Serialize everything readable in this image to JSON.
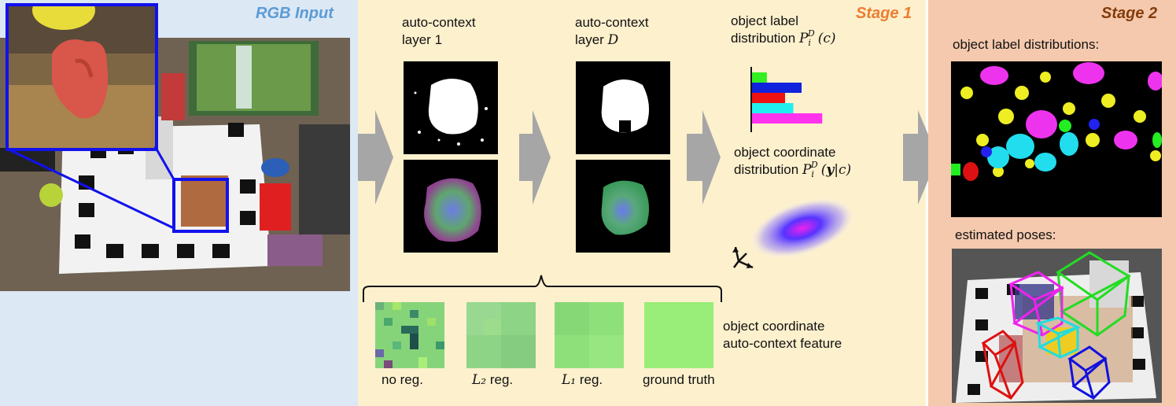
{
  "panels": {
    "rgb_input": {
      "title": "RGB Input",
      "title_color": "#5b9bd5",
      "bg": "#dce8f4"
    },
    "stage1": {
      "title": "Stage 1",
      "title_color": "#ed7d31",
      "bg": "#fdf0cd"
    },
    "stage2": {
      "title": "Stage 2",
      "title_color": "#843c0c",
      "bg": "#f4c9ad"
    }
  },
  "stage1": {
    "layer1_line1": "auto-context",
    "layer1_line2": "layer 1",
    "layerD_line1": "auto-context",
    "layerD_line2_prefix": "layer ",
    "layerD_line2_math": "D",
    "label_dist_line1": "object label",
    "label_dist_line2_prefix": "distribution ",
    "label_dist_line2_math": "P",
    "coord_dist_line1": "object coordinate",
    "coord_dist_line2_prefix": "distribution ",
    "coord_dist_line2_math": "P",
    "feature_line1": "object coordinate",
    "feature_line2": "auto-context feature",
    "patches": [
      {
        "label": "no reg.",
        "math": ""
      },
      {
        "label": " reg.",
        "math": "L₂"
      },
      {
        "label": " reg.",
        "math": "L₁"
      },
      {
        "label": "ground truth",
        "math": ""
      }
    ],
    "bar_chart": {
      "bars": [
        {
          "color": "#33ee22",
          "value": 0.18
        },
        {
          "color": "#1122dd",
          "value": 0.6
        },
        {
          "color": "#ee1111",
          "value": 0.4
        },
        {
          "color": "#22eeee",
          "value": 0.5
        },
        {
          "color": "#ff33ee",
          "value": 0.85
        }
      ]
    }
  },
  "stage2": {
    "label_dist_title": "object label distributions:",
    "poses_title": "estimated poses:"
  },
  "colors": {
    "arrow": "#a6a6a6",
    "zoom_box": "#1111ee"
  }
}
